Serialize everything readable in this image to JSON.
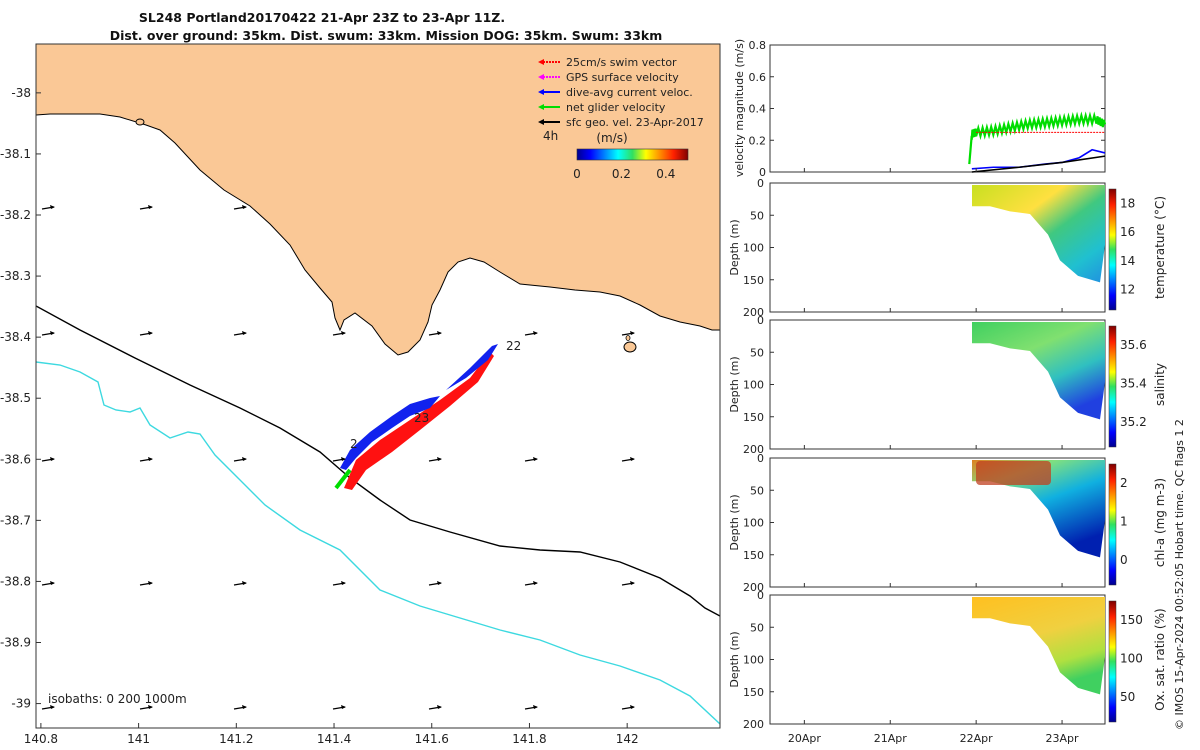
{
  "title": {
    "line1": "SL248 Portland20170422 21-Apr 23Z to 23-Apr 11Z.",
    "line2": "Dist. over ground: 35km. Dist. swum: 33km. Mission DOG: 35km. Swum: 33km"
  },
  "colors": {
    "land": "#fac896",
    "coast_contour": "#000000",
    "iso1000": "#3dd9e0",
    "swim": "#ff0000",
    "gps": "#ff00ff",
    "current": "#0000ff",
    "net": "#00dd00",
    "geo": "#000000",
    "track_red": "#ff1111",
    "track_blue": "#1122ee"
  },
  "map": {
    "x_ticks": [
      "140.8",
      "141",
      "141.2",
      "141.4",
      "141.6",
      "141.8",
      "142"
    ],
    "y_ticks": [
      "-38",
      "-38.1",
      "-38.2",
      "-38.3",
      "-38.4",
      "-38.5",
      "-38.6",
      "-38.7",
      "-38.8",
      "-38.9",
      "-39"
    ],
    "x_range": [
      140.79,
      142.19
    ],
    "y_range": [
      -39.04,
      -37.92
    ],
    "isobaths_label": "isobaths: 0   200  1000m",
    "day_labels": [
      "22",
      "23",
      "2"
    ],
    "scale_label": "4h",
    "legend": [
      {
        "label": "25cm/s swim vector",
        "color": "#ff0000"
      },
      {
        "label": "GPS surface velocity",
        "color": "#ff00ff"
      },
      {
        "label": "dive-avg current veloc.",
        "color": "#0000ff"
      },
      {
        "label": "net glider velocity",
        "color": "#00dd00"
      },
      {
        "label": "sfc geo. vel. 23-Apr-2017",
        "color": "#000000"
      }
    ],
    "colorbar": {
      "unit": "(m/s)",
      "ticks": [
        "0",
        "0.2",
        "0.4"
      ],
      "range": [
        0,
        0.5
      ]
    }
  },
  "chart_data": [
    {
      "type": "line",
      "title": "velocity magnitude",
      "ylabel": "velocity magnitude (m/s)",
      "ylim": [
        0,
        0.8
      ],
      "yticks": [
        "0",
        "0.2",
        "0.4",
        "0.6",
        "0.8"
      ],
      "x_day_range": [
        19.6,
        23.5
      ],
      "series": [
        {
          "name": "net glider velocity",
          "color": "#00dd00",
          "x": [
            21.92,
            21.95,
            22.0,
            22.2,
            22.4,
            22.6,
            22.8,
            23.0,
            23.2,
            23.4,
            23.5
          ],
          "values": [
            0.05,
            0.24,
            0.25,
            0.26,
            0.28,
            0.3,
            0.31,
            0.32,
            0.33,
            0.33,
            0.3
          ]
        },
        {
          "name": "swim",
          "color": "#ff0000",
          "x": [
            22.0,
            22.5,
            23.0,
            23.5
          ],
          "values": [
            0.25,
            0.25,
            0.25,
            0.25
          ]
        },
        {
          "name": "dive-avg current",
          "color": "#0000ff",
          "x": [
            21.95,
            22.2,
            22.5,
            22.8,
            23.0,
            23.2,
            23.35,
            23.5
          ],
          "values": [
            0.02,
            0.03,
            0.03,
            0.05,
            0.06,
            0.09,
            0.14,
            0.12
          ]
        },
        {
          "name": "sfc geo",
          "color": "#000000",
          "x": [
            21.95,
            22.5,
            23.0,
            23.5
          ],
          "values": [
            0.0,
            0.03,
            0.06,
            0.1
          ]
        }
      ]
    },
    {
      "type": "heatmap",
      "variable": "temperature",
      "cblabel": "temperature (°C)",
      "cbticks": [
        "12",
        "14",
        "16",
        "18"
      ],
      "ylabel": "Depth (m)",
      "yticks": [
        "0",
        "50",
        "100",
        "150",
        "200"
      ]
    },
    {
      "type": "heatmap",
      "variable": "salinity",
      "cblabel": "salinity",
      "cbticks": [
        "35.2",
        "35.4",
        "35.6"
      ],
      "ylabel": "Depth (m)",
      "yticks": [
        "0",
        "50",
        "100",
        "150",
        "200"
      ]
    },
    {
      "type": "heatmap",
      "variable": "chl-a",
      "cblabel": "chl-a (mg m-3)",
      "cbticks": [
        "0",
        "1",
        "2"
      ],
      "ylabel": "Depth (m)",
      "yticks": [
        "0",
        "50",
        "100",
        "150",
        "200"
      ]
    },
    {
      "type": "heatmap",
      "variable": "oxygen",
      "cblabel": "Ox. sat. ratio (%)",
      "cbticks": [
        "50",
        "100",
        "150"
      ],
      "ylabel": "Depth (m)",
      "yticks": [
        "0",
        "50",
        "100",
        "150",
        "200"
      ]
    }
  ],
  "time_axis": {
    "labels": [
      "20Apr",
      "21Apr",
      "22Apr",
      "23Apr"
    ]
  },
  "footer": "© IMOS 15-Apr-2024 00:52:05 Hobart time. QC flags 1  2"
}
